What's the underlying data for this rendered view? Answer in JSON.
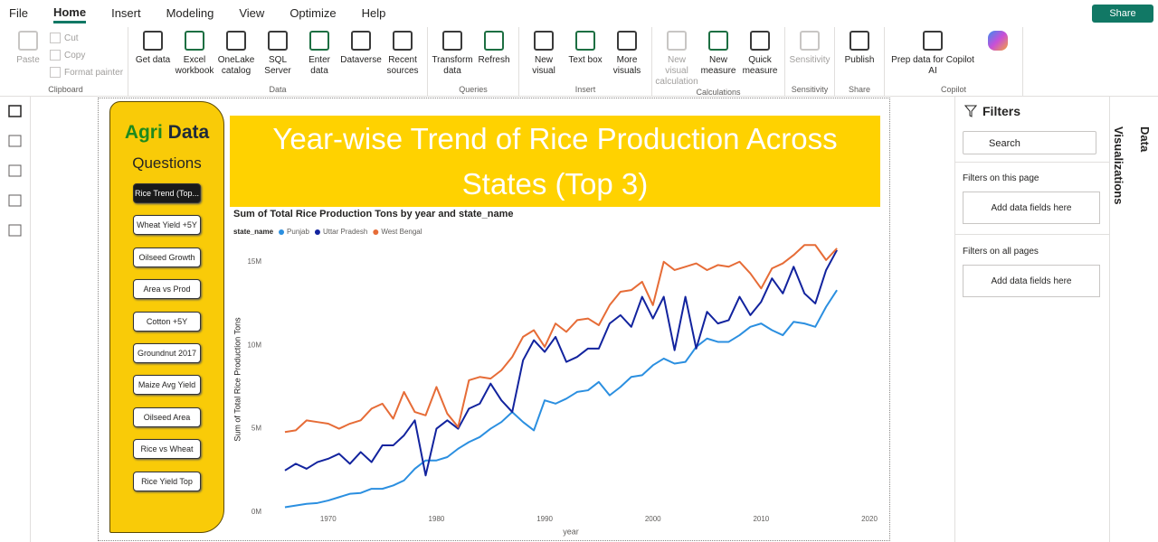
{
  "menu": [
    "File",
    "Home",
    "Insert",
    "Modeling",
    "View",
    "Optimize",
    "Help"
  ],
  "share": "Share",
  "ribbon": {
    "groups": [
      {
        "label": "Clipboard",
        "items": [
          {
            "label": "Paste",
            "disabled": true
          },
          {
            "label": "Cut",
            "disabled": true
          },
          {
            "label": "Copy",
            "disabled": true
          },
          {
            "label": "Format painter",
            "disabled": true
          }
        ]
      },
      {
        "label": "Data",
        "items": [
          {
            "label": "Get data"
          },
          {
            "label": "Excel workbook"
          },
          {
            "label": "OneLake catalog"
          },
          {
            "label": "SQL Server"
          },
          {
            "label": "Enter data"
          },
          {
            "label": "Dataverse"
          },
          {
            "label": "Recent sources"
          }
        ]
      },
      {
        "label": "Queries",
        "items": [
          {
            "label": "Transform data"
          },
          {
            "label": "Refresh"
          }
        ]
      },
      {
        "label": "Insert",
        "items": [
          {
            "label": "New visual"
          },
          {
            "label": "Text box"
          },
          {
            "label": "More visuals"
          }
        ]
      },
      {
        "label": "Calculations",
        "items": [
          {
            "label": "New visual calculation",
            "disabled": true
          },
          {
            "label": "New measure"
          },
          {
            "label": "Quick measure"
          }
        ]
      },
      {
        "label": "Sensitivity",
        "items": [
          {
            "label": "Sensitivity",
            "disabled": true
          }
        ]
      },
      {
        "label": "Share",
        "items": [
          {
            "label": "Publish"
          }
        ]
      },
      {
        "label": "Copilot",
        "items": [
          {
            "label": "Prep data for Copilot AI"
          }
        ]
      }
    ]
  },
  "nav": {
    "title_1": "Agri",
    "title_2": "Data",
    "subtitle": "Questions",
    "buttons": [
      {
        "label": "Rice Trend (Top...",
        "selected": true
      },
      {
        "label": "Wheat Yield +5Y"
      },
      {
        "label": "Oilseed Growth"
      },
      {
        "label": "Area vs Prod"
      },
      {
        "label": "Cotton +5Y"
      },
      {
        "label": "Groundnut 2017"
      },
      {
        "label": "Maize Avg Yield"
      },
      {
        "label": "Oilseed Area"
      },
      {
        "label": "Rice vs Wheat"
      },
      {
        "label": "Rice Yield Top"
      }
    ]
  },
  "banner": "Year-wise Trend of Rice Production Across States (Top 3)",
  "chart_data": {
    "type": "line",
    "title": "Sum of Total Rice Production Tons by year and state_name",
    "legend_title": "state_name",
    "x_label": "year",
    "y_label": "Sum of Total Rice Production Tons",
    "x": [
      1966,
      1967,
      1968,
      1969,
      1970,
      1971,
      1972,
      1973,
      1974,
      1975,
      1976,
      1977,
      1978,
      1979,
      1980,
      1981,
      1982,
      1983,
      1984,
      1985,
      1986,
      1987,
      1988,
      1989,
      1990,
      1991,
      1992,
      1993,
      1994,
      1995,
      1996,
      1997,
      1998,
      1999,
      2000,
      2001,
      2002,
      2003,
      2004,
      2005,
      2006,
      2007,
      2008,
      2009,
      2010,
      2011,
      2012,
      2013,
      2014,
      2015,
      2016,
      2017
    ],
    "series": [
      {
        "name": "Punjab",
        "color": "#2b8fe0",
        "values": [
          300000,
          400000,
          500000,
          550000,
          700000,
          900000,
          1100000,
          1150000,
          1400000,
          1400000,
          1600000,
          1900000,
          2600000,
          3100000,
          3100000,
          3300000,
          3800000,
          4200000,
          4500000,
          5000000,
          5400000,
          6000000,
          5400000,
          4900000,
          6700000,
          6500000,
          6800000,
          7200000,
          7300000,
          7800000,
          7000000,
          7500000,
          8100000,
          8200000,
          8800000,
          9200000,
          8900000,
          9000000,
          9900000,
          10400000,
          10200000,
          10200000,
          10600000,
          11100000,
          11300000,
          10900000,
          10600000,
          11400000,
          11300000,
          11100000,
          12300000,
          13300000
        ]
      },
      {
        "name": "Uttar Pradesh",
        "color": "#12239e",
        "values": [
          2500000,
          2900000,
          2600000,
          3000000,
          3200000,
          3500000,
          2900000,
          3600000,
          3000000,
          4000000,
          4000000,
          4600000,
          5500000,
          2200000,
          5000000,
          5500000,
          5000000,
          6200000,
          6500000,
          7700000,
          6700000,
          6000000,
          9100000,
          10300000,
          9600000,
          10500000,
          9000000,
          9300000,
          9800000,
          9800000,
          11300000,
          11800000,
          11100000,
          12900000,
          11600000,
          12900000,
          9700000,
          12900000,
          9800000,
          12000000,
          11300000,
          11500000,
          12900000,
          11800000,
          12600000,
          14000000,
          13100000,
          14700000,
          13100000,
          12500000,
          14500000,
          15700000
        ]
      },
      {
        "name": "West Bengal",
        "color": "#e66c37",
        "values": [
          4800000,
          4900000,
          5500000,
          5400000,
          5300000,
          5000000,
          5300000,
          5500000,
          6200000,
          6500000,
          5600000,
          7200000,
          6000000,
          5800000,
          7500000,
          5900000,
          5100000,
          7900000,
          8100000,
          8000000,
          8500000,
          9300000,
          10500000,
          10900000,
          9900000,
          11300000,
          10800000,
          11500000,
          11600000,
          11200000,
          12400000,
          13200000,
          13300000,
          13800000,
          12400000,
          15000000,
          14500000,
          14700000,
          14900000,
          14500000,
          14800000,
          14700000,
          15000000,
          14300000,
          13400000,
          14600000,
          14900000,
          15400000,
          16000000,
          16000000,
          15100000,
          15800000
        ]
      }
    ],
    "xlim": [
      1965,
      2020
    ],
    "xticks": [
      1970,
      1980,
      1990,
      2000,
      2010,
      2020
    ],
    "ylim": [
      0,
      16500000
    ],
    "yticks": [
      {
        "value": 0,
        "label": "0M"
      },
      {
        "value": 5000000,
        "label": "5M"
      },
      {
        "value": 10000000,
        "label": "10M"
      },
      {
        "value": 15000000,
        "label": "15M"
      }
    ],
    "grid": false
  },
  "filters": {
    "title": "Filters",
    "search": "Search",
    "on_page": "Filters on this page",
    "on_page_drop": "Add data fields here",
    "all_pages": "Filters on all pages",
    "all_pages_drop": "Add data fields here"
  },
  "side_tabs": [
    "Visualizations",
    "Data"
  ]
}
